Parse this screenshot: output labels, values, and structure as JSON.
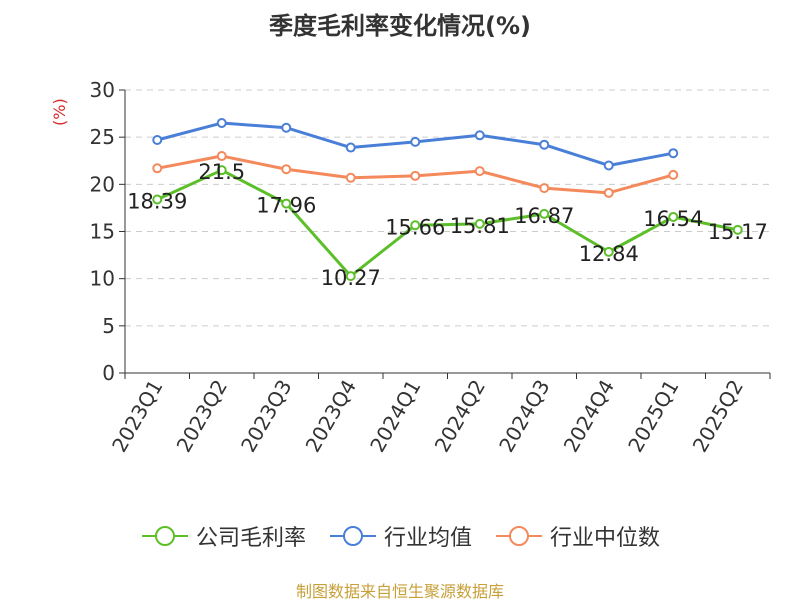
{
  "title": "季度毛利率变化情况(%)",
  "y_unit": "(%)",
  "source": "制图数据来自恒生聚源数据库",
  "chart_data": {
    "type": "line",
    "categories": [
      "2023Q1",
      "2023Q2",
      "2023Q3",
      "2023Q4",
      "2024Q1",
      "2024Q2",
      "2024Q3",
      "2024Q4",
      "2025Q1",
      "2025Q2"
    ],
    "ylim": [
      0,
      30
    ],
    "yticks": [
      0,
      5,
      10,
      15,
      20,
      25,
      30
    ],
    "grid": true,
    "legend_position": "bottom",
    "series": [
      {
        "name": "公司毛利率",
        "color": "#5cbf2a",
        "show_labels": true,
        "values": [
          18.39,
          21.5,
          17.96,
          10.27,
          15.66,
          15.81,
          16.87,
          12.84,
          16.54,
          15.17
        ],
        "labels": [
          "18.39",
          "21.5",
          "17.96",
          "10.27",
          "15.66",
          "15.81",
          "16.87",
          "12.84",
          "16.54",
          "15.17"
        ]
      },
      {
        "name": "行业均值",
        "color": "#4a7fd8",
        "show_labels": false,
        "values": [
          24.7,
          26.5,
          26.0,
          23.9,
          24.5,
          25.2,
          24.2,
          22.0,
          23.3,
          null
        ]
      },
      {
        "name": "行业中位数",
        "color": "#f4895b",
        "show_labels": false,
        "values": [
          21.7,
          23.0,
          21.6,
          20.7,
          20.9,
          21.4,
          19.6,
          19.1,
          21.0,
          null
        ]
      }
    ]
  }
}
